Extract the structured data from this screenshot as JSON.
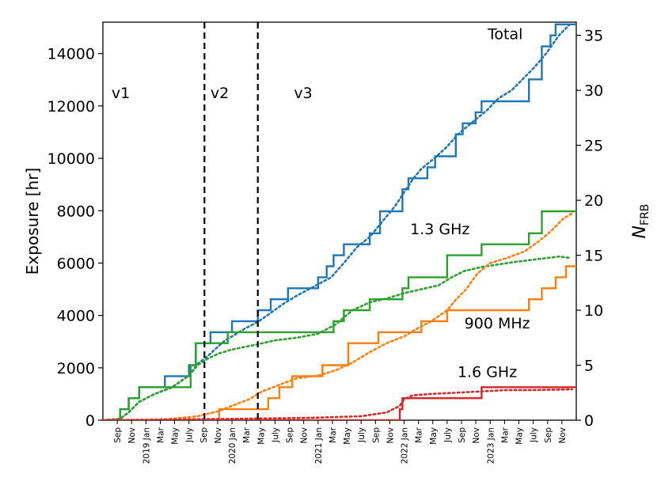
{
  "chart_data": {
    "type": "line",
    "title": "",
    "ylabel": "Exposure [hr]",
    "y2label_main": "N",
    "y2label_sub": "FRB",
    "ylim": [
      0,
      15200
    ],
    "y2lim": [
      0,
      36.2
    ],
    "xlim": [
      2018.5,
      2024.0
    ],
    "yticks": [
      0,
      2000,
      4000,
      6000,
      8000,
      10000,
      12000,
      14000
    ],
    "yticklabels": [
      "0",
      "2000",
      "4000",
      "6000",
      "8000",
      "10000",
      "12000",
      "14000"
    ],
    "y2ticks": [
      0,
      5,
      10,
      15,
      20,
      25,
      30,
      35
    ],
    "y2ticklabels": [
      "0",
      "5",
      "10",
      "15",
      "20",
      "25",
      "30",
      "35"
    ],
    "xticks": [
      {
        "x": 2018.667,
        "label": "Sep"
      },
      {
        "x": 2018.833,
        "label": "Nov"
      },
      {
        "x": 2019.0,
        "label": "2019 Jan"
      },
      {
        "x": 2019.167,
        "label": "Mar"
      },
      {
        "x": 2019.333,
        "label": "May"
      },
      {
        "x": 2019.5,
        "label": "July"
      },
      {
        "x": 2019.667,
        "label": "Sep"
      },
      {
        "x": 2019.833,
        "label": "Nov"
      },
      {
        "x": 2020.0,
        "label": "2020 Jan"
      },
      {
        "x": 2020.167,
        "label": "Mar"
      },
      {
        "x": 2020.333,
        "label": "May"
      },
      {
        "x": 2020.5,
        "label": "July"
      },
      {
        "x": 2020.667,
        "label": "Sep"
      },
      {
        "x": 2020.833,
        "label": "Nov"
      },
      {
        "x": 2021.0,
        "label": "2021 Jan"
      },
      {
        "x": 2021.167,
        "label": "Mar"
      },
      {
        "x": 2021.333,
        "label": "May"
      },
      {
        "x": 2021.5,
        "label": "July"
      },
      {
        "x": 2021.667,
        "label": "Sep"
      },
      {
        "x": 2021.833,
        "label": "Nov"
      },
      {
        "x": 2022.0,
        "label": "2022 Jan"
      },
      {
        "x": 2022.167,
        "label": "Mar"
      },
      {
        "x": 2022.333,
        "label": "May"
      },
      {
        "x": 2022.5,
        "label": "July"
      },
      {
        "x": 2022.667,
        "label": "Sep"
      },
      {
        "x": 2022.833,
        "label": "Nov"
      },
      {
        "x": 2023.0,
        "label": "2023 Jan"
      },
      {
        "x": 2023.167,
        "label": "Mar"
      },
      {
        "x": 2023.333,
        "label": "May"
      },
      {
        "x": 2023.5,
        "label": "July"
      },
      {
        "x": 2023.667,
        "label": "Sep"
      },
      {
        "x": 2023.833,
        "label": "Nov"
      }
    ],
    "vlines": [
      {
        "x": 2019.68
      },
      {
        "x": 2020.3
      }
    ],
    "annotations": [
      {
        "text": "v1",
        "x": 2018.6,
        "y": 12300
      },
      {
        "text": "v2",
        "x": 2019.75,
        "y": 12300
      },
      {
        "text": "v3",
        "x": 2020.72,
        "y": 12300
      },
      {
        "text": "Total",
        "x": 2022.97,
        "y": 14550
      },
      {
        "text": "1.3 GHz",
        "x": 2022.07,
        "y": 7100
      },
      {
        "text": "900 MHz",
        "x": 2022.7,
        "y": 3500
      },
      {
        "text": "1.6 GHz",
        "x": 2022.62,
        "y": 1650
      }
    ],
    "series": [
      {
        "name": "Total N_FRB",
        "axis": "right",
        "style": "step",
        "color": "#1f77b4",
        "points": [
          [
            2018.5,
            0
          ],
          [
            2018.7,
            0
          ],
          [
            2018.7,
            1
          ],
          [
            2018.8,
            1
          ],
          [
            2018.8,
            2
          ],
          [
            2018.92,
            2
          ],
          [
            2018.92,
            3
          ],
          [
            2019.22,
            3
          ],
          [
            2019.22,
            4
          ],
          [
            2019.5,
            4
          ],
          [
            2019.5,
            5
          ],
          [
            2019.58,
            5
          ],
          [
            2019.58,
            7
          ],
          [
            2019.75,
            7
          ],
          [
            2019.75,
            8
          ],
          [
            2020.0,
            8
          ],
          [
            2020.0,
            9
          ],
          [
            2020.3,
            9
          ],
          [
            2020.3,
            10
          ],
          [
            2020.45,
            10
          ],
          [
            2020.45,
            11
          ],
          [
            2020.65,
            11
          ],
          [
            2020.65,
            12
          ],
          [
            2021.0,
            12
          ],
          [
            2021.0,
            13
          ],
          [
            2021.1,
            13
          ],
          [
            2021.1,
            14
          ],
          [
            2021.18,
            14
          ],
          [
            2021.18,
            15
          ],
          [
            2021.3,
            15
          ],
          [
            2021.3,
            16
          ],
          [
            2021.6,
            16
          ],
          [
            2021.6,
            17
          ],
          [
            2021.72,
            17
          ],
          [
            2021.72,
            19
          ],
          [
            2021.98,
            19
          ],
          [
            2021.98,
            21
          ],
          [
            2022.05,
            21
          ],
          [
            2022.05,
            22
          ],
          [
            2022.27,
            22
          ],
          [
            2022.27,
            23
          ],
          [
            2022.36,
            23
          ],
          [
            2022.36,
            24
          ],
          [
            2022.6,
            24
          ],
          [
            2022.6,
            26
          ],
          [
            2022.68,
            26
          ],
          [
            2022.68,
            27
          ],
          [
            2022.83,
            27
          ],
          [
            2022.83,
            28
          ],
          [
            2022.9,
            28
          ],
          [
            2022.9,
            29
          ],
          [
            2023.45,
            29
          ],
          [
            2023.45,
            31
          ],
          [
            2023.6,
            31
          ],
          [
            2023.6,
            34
          ],
          [
            2023.7,
            34
          ],
          [
            2023.7,
            35
          ],
          [
            2023.76,
            35
          ],
          [
            2023.76,
            36
          ],
          [
            2024.0,
            36
          ]
        ]
      },
      {
        "name": "Total exposure",
        "axis": "left",
        "style": "dotted",
        "color": "#1f77b4",
        "points": [
          [
            2018.5,
            0
          ],
          [
            2018.7,
            50
          ],
          [
            2018.8,
            300
          ],
          [
            2018.92,
            700
          ],
          [
            2019.1,
            1000
          ],
          [
            2019.3,
            1250
          ],
          [
            2019.5,
            1700
          ],
          [
            2019.6,
            2150
          ],
          [
            2019.72,
            2450
          ],
          [
            2019.8,
            2700
          ],
          [
            2019.92,
            3050
          ],
          [
            2020.0,
            3200
          ],
          [
            2020.15,
            3500
          ],
          [
            2020.3,
            3750
          ],
          [
            2020.45,
            4100
          ],
          [
            2020.6,
            4450
          ],
          [
            2020.75,
            4750
          ],
          [
            2020.95,
            5100
          ],
          [
            2021.15,
            5450
          ],
          [
            2021.3,
            6000
          ],
          [
            2021.45,
            6600
          ],
          [
            2021.6,
            7000
          ],
          [
            2021.75,
            7600
          ],
          [
            2021.9,
            8200
          ],
          [
            2022.0,
            8700
          ],
          [
            2022.1,
            9200
          ],
          [
            2022.2,
            9600
          ],
          [
            2022.35,
            10000
          ],
          [
            2022.5,
            10450
          ],
          [
            2022.62,
            10900
          ],
          [
            2022.8,
            11400
          ],
          [
            2022.95,
            11800
          ],
          [
            2023.1,
            12300
          ],
          [
            2023.25,
            12600
          ],
          [
            2023.4,
            13100
          ],
          [
            2023.52,
            13500
          ],
          [
            2023.65,
            14000
          ],
          [
            2023.8,
            14700
          ],
          [
            2023.92,
            15100
          ]
        ]
      },
      {
        "name": "1.3 GHz N_FRB",
        "axis": "right",
        "style": "step",
        "color": "#2ca02c",
        "points": [
          [
            2018.5,
            0
          ],
          [
            2018.7,
            0
          ],
          [
            2018.7,
            1
          ],
          [
            2018.8,
            1
          ],
          [
            2018.8,
            2
          ],
          [
            2018.92,
            2
          ],
          [
            2018.92,
            3
          ],
          [
            2019.22,
            3
          ],
          [
            2019.22,
            3
          ],
          [
            2019.52,
            3
          ],
          [
            2019.52,
            5
          ],
          [
            2019.58,
            5
          ],
          [
            2019.58,
            7
          ],
          [
            2019.95,
            7
          ],
          [
            2019.95,
            8
          ],
          [
            2020.45,
            8
          ],
          [
            2020.45,
            8
          ],
          [
            2021.18,
            8
          ],
          [
            2021.18,
            9
          ],
          [
            2021.3,
            9
          ],
          [
            2021.3,
            10
          ],
          [
            2021.6,
            10
          ],
          [
            2021.6,
            11
          ],
          [
            2021.98,
            11
          ],
          [
            2021.98,
            12
          ],
          [
            2022.05,
            12
          ],
          [
            2022.05,
            13
          ],
          [
            2022.5,
            13
          ],
          [
            2022.5,
            15
          ],
          [
            2022.9,
            15
          ],
          [
            2022.9,
            16
          ],
          [
            2023.45,
            16
          ],
          [
            2023.45,
            17
          ],
          [
            2023.6,
            17
          ],
          [
            2023.6,
            19
          ],
          [
            2024.0,
            19
          ]
        ]
      },
      {
        "name": "1.3 GHz exposure",
        "axis": "left",
        "style": "dotted",
        "color": "#2ca02c",
        "points": [
          [
            2018.5,
            0
          ],
          [
            2018.7,
            50
          ],
          [
            2018.8,
            300
          ],
          [
            2018.92,
            700
          ],
          [
            2019.1,
            1000
          ],
          [
            2019.3,
            1250
          ],
          [
            2019.5,
            1700
          ],
          [
            2019.6,
            2100
          ],
          [
            2019.72,
            2350
          ],
          [
            2019.85,
            2550
          ],
          [
            2020.0,
            2700
          ],
          [
            2020.3,
            2900
          ],
          [
            2020.5,
            3050
          ],
          [
            2020.75,
            3150
          ],
          [
            2021.0,
            3300
          ],
          [
            2021.2,
            3650
          ],
          [
            2021.4,
            4200
          ],
          [
            2021.6,
            4500
          ],
          [
            2021.8,
            4650
          ],
          [
            2022.0,
            4850
          ],
          [
            2022.2,
            5000
          ],
          [
            2022.4,
            5150
          ],
          [
            2022.55,
            5450
          ],
          [
            2022.7,
            5700
          ],
          [
            2022.9,
            5850
          ],
          [
            2023.1,
            5950
          ],
          [
            2023.3,
            6050
          ],
          [
            2023.55,
            6150
          ],
          [
            2023.8,
            6250
          ],
          [
            2023.92,
            6200
          ]
        ]
      },
      {
        "name": "900 MHz N_FRB",
        "axis": "right",
        "style": "step",
        "color": "#ff7f0e",
        "points": [
          [
            2018.5,
            0
          ],
          [
            2019.85,
            0
          ],
          [
            2019.85,
            1
          ],
          [
            2020.3,
            1
          ],
          [
            2020.3,
            1
          ],
          [
            2020.42,
            1
          ],
          [
            2020.42,
            2
          ],
          [
            2020.55,
            2
          ],
          [
            2020.55,
            3
          ],
          [
            2020.7,
            3
          ],
          [
            2020.7,
            4
          ],
          [
            2021.05,
            4
          ],
          [
            2021.05,
            5
          ],
          [
            2021.35,
            5
          ],
          [
            2021.35,
            7
          ],
          [
            2021.7,
            7
          ],
          [
            2021.7,
            8
          ],
          [
            2022.2,
            8
          ],
          [
            2022.2,
            9
          ],
          [
            2022.5,
            9
          ],
          [
            2022.5,
            10
          ],
          [
            2023.45,
            10
          ],
          [
            2023.45,
            11
          ],
          [
            2023.6,
            11
          ],
          [
            2023.6,
            12
          ],
          [
            2023.76,
            12
          ],
          [
            2023.76,
            13
          ],
          [
            2023.88,
            13
          ],
          [
            2023.88,
            14
          ],
          [
            2024.0,
            14
          ]
        ]
      },
      {
        "name": "900 MHz exposure",
        "axis": "left",
        "style": "dotted",
        "color": "#ff7f0e",
        "points": [
          [
            2018.5,
            0
          ],
          [
            2019.0,
            0
          ],
          [
            2019.3,
            50
          ],
          [
            2019.6,
            150
          ],
          [
            2019.85,
            350
          ],
          [
            2020.0,
            550
          ],
          [
            2020.2,
            800
          ],
          [
            2020.35,
            1100
          ],
          [
            2020.55,
            1350
          ],
          [
            2020.75,
            1600
          ],
          [
            2021.0,
            1700
          ],
          [
            2021.2,
            1900
          ],
          [
            2021.4,
            2200
          ],
          [
            2021.6,
            2600
          ],
          [
            2021.8,
            2950
          ],
          [
            2022.0,
            3200
          ],
          [
            2022.15,
            3500
          ],
          [
            2022.3,
            3750
          ],
          [
            2022.5,
            4200
          ],
          [
            2022.6,
            4600
          ],
          [
            2022.72,
            5000
          ],
          [
            2022.85,
            5600
          ],
          [
            2023.0,
            6000
          ],
          [
            2023.2,
            6200
          ],
          [
            2023.4,
            6450
          ],
          [
            2023.55,
            6800
          ],
          [
            2023.7,
            7200
          ],
          [
            2023.85,
            7700
          ],
          [
            2023.95,
            7900
          ]
        ]
      },
      {
        "name": "1.6 GHz N_FRB",
        "axis": "right",
        "style": "step",
        "color": "#d62728",
        "points": [
          [
            2018.5,
            0
          ],
          [
            2021.95,
            0
          ],
          [
            2021.95,
            1
          ],
          [
            2021.98,
            1
          ],
          [
            2021.98,
            2
          ],
          [
            2022.5,
            2
          ],
          [
            2022.5,
            2
          ],
          [
            2022.9,
            2
          ],
          [
            2022.9,
            3
          ],
          [
            2024.0,
            3
          ]
        ]
      },
      {
        "name": "1.6 GHz exposure",
        "axis": "left",
        "style": "dotted",
        "color": "#d62728",
        "points": [
          [
            2018.5,
            0
          ],
          [
            2020.0,
            50
          ],
          [
            2020.7,
            80
          ],
          [
            2021.0,
            100
          ],
          [
            2021.5,
            150
          ],
          [
            2021.8,
            300
          ],
          [
            2021.95,
            550
          ],
          [
            2022.0,
            800
          ],
          [
            2022.1,
            950
          ],
          [
            2022.3,
            1000
          ],
          [
            2022.6,
            1050
          ],
          [
            2022.9,
            1100
          ],
          [
            2023.2,
            1150
          ],
          [
            2023.5,
            1150
          ],
          [
            2023.95,
            1180
          ]
        ]
      }
    ]
  }
}
